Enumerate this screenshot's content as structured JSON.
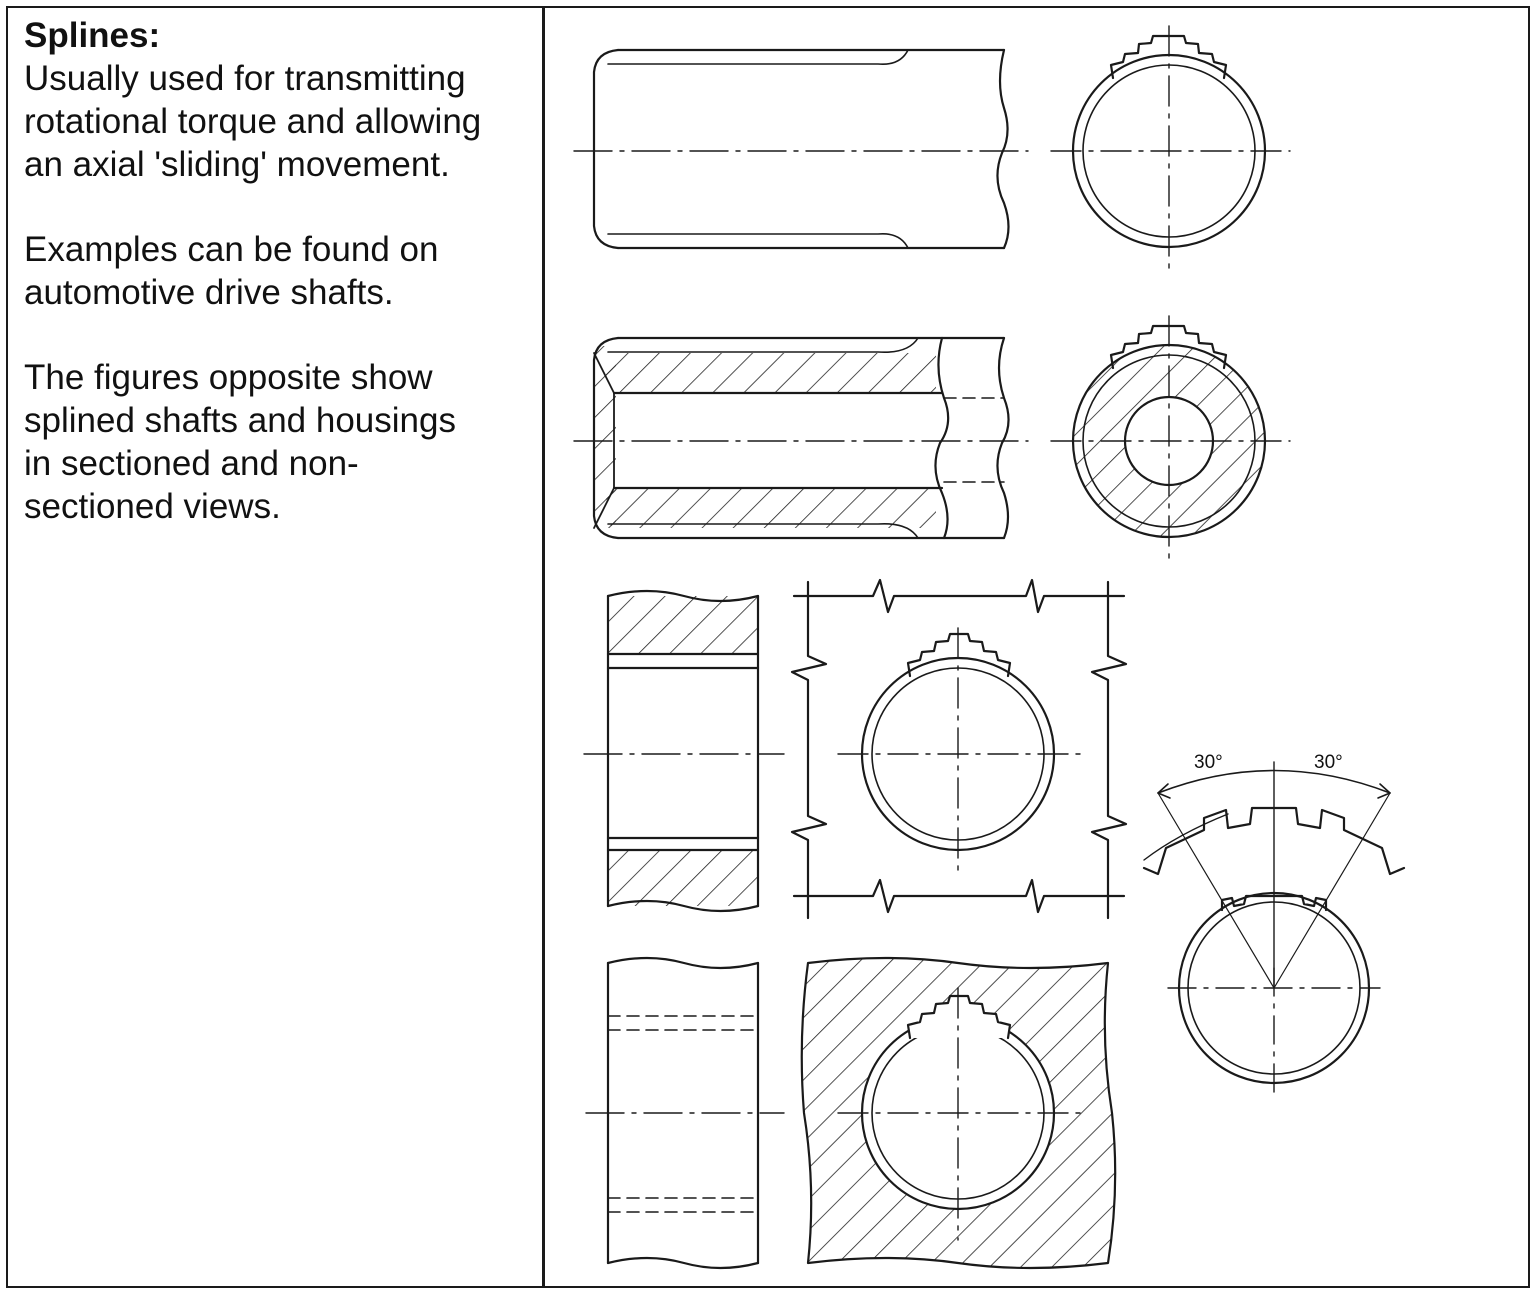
{
  "heading": "Splines:",
  "paragraphs": [
    [
      "Usually used for transmitting",
      "rotational torque and allowing",
      "an axial 'sliding' movement."
    ],
    [
      "Examples can be found on",
      "automotive drive shafts."
    ],
    [
      "The figures opposite show",
      "splined shafts and housings",
      "in sectioned and non-",
      "sectioned views."
    ]
  ],
  "figure": {
    "angle_left": "30°",
    "angle_right": "30°"
  }
}
